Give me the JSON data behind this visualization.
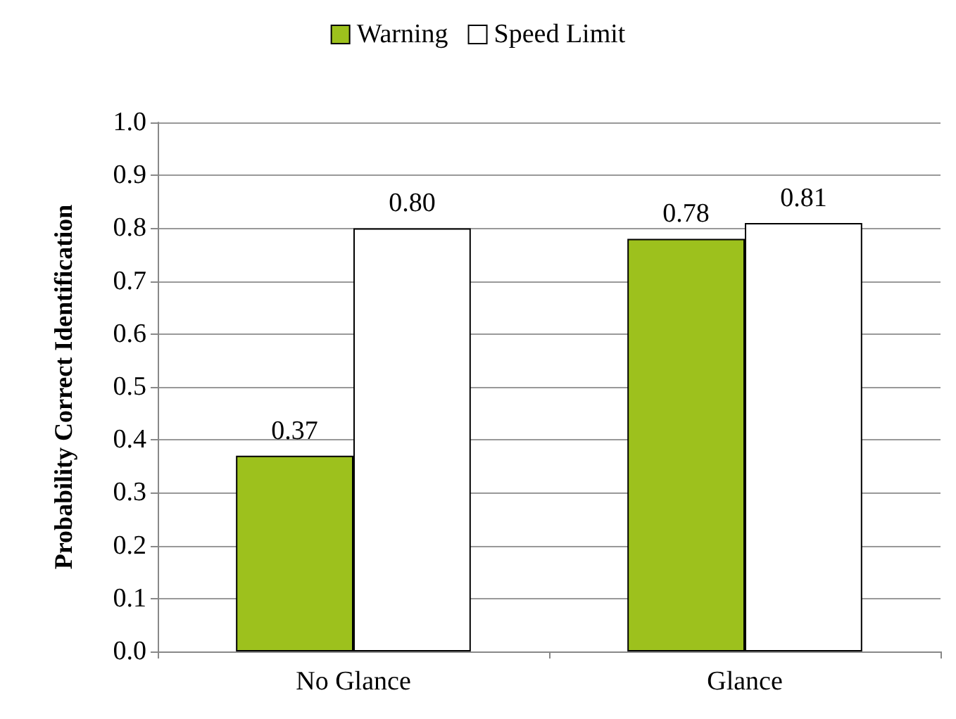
{
  "chart_data": {
    "type": "bar",
    "ylabel": "Probability Correct Identification",
    "categories": [
      "No Glance",
      "Glance"
    ],
    "series": [
      {
        "name": "Warning",
        "color": "#9dc11d",
        "values": [
          0.37,
          0.78
        ],
        "value_labels": [
          "0.37",
          "0.78"
        ]
      },
      {
        "name": "Speed Limit",
        "color": "#ffffff",
        "values": [
          0.8,
          0.81
        ],
        "value_labels": [
          "0.80",
          "0.81"
        ]
      }
    ],
    "ylim": [
      0,
      1
    ],
    "yticks": [
      {
        "value": 0,
        "label": "0.0"
      },
      {
        "value": 0.1,
        "label": "0.1"
      },
      {
        "value": 0.2,
        "label": "0.2"
      },
      {
        "value": 0.3,
        "label": "0.3"
      },
      {
        "value": 0.4,
        "label": "0.4"
      },
      {
        "value": 0.5,
        "label": "0.5"
      },
      {
        "value": 0.6,
        "label": "0.6"
      },
      {
        "value": 0.7,
        "label": "0.7"
      },
      {
        "value": 0.8,
        "label": "0.8"
      },
      {
        "value": 0.9,
        "label": "0.9"
      },
      {
        "value": 1,
        "label": "1.0"
      }
    ],
    "grid": "y",
    "legend": "top"
  }
}
